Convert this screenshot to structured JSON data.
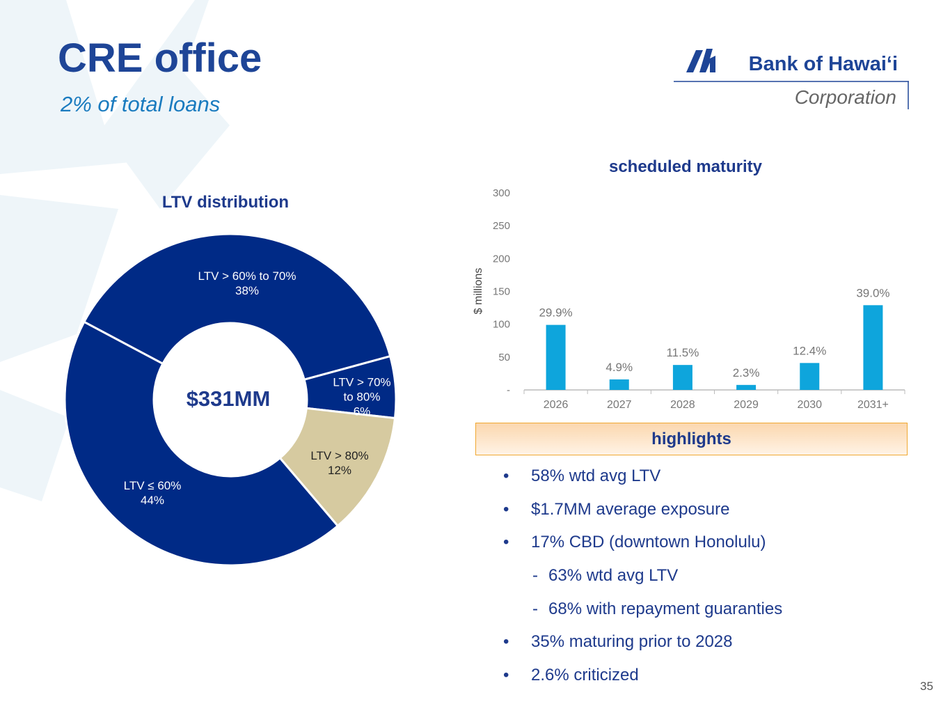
{
  "title": "CRE office",
  "subtitle": "2% of total loans",
  "logo": {
    "name": "Bank of Hawai‘i",
    "sub": "Corporation"
  },
  "chart_data": [
    {
      "type": "donut",
      "title": "LTV distribution",
      "center_label": "$331MM",
      "categories": [
        "LTV > 60% to 70%",
        "LTV > 70% to 80%",
        "LTV > 80%",
        "LTV ≤ 60%"
      ],
      "values": [
        38,
        6,
        12,
        44
      ],
      "value_labels": [
        "38%",
        "6%",
        "12%",
        "44%"
      ],
      "colors": [
        "#002a86",
        "#002a86",
        "#d6caa0",
        "#002a86"
      ]
    },
    {
      "type": "bar",
      "title": "scheduled maturity",
      "y_label": "$ millions",
      "categories": [
        "2026",
        "2027",
        "2028",
        "2029",
        "2030",
        "2031+"
      ],
      "values": [
        99,
        16,
        38,
        7.6,
        41,
        129
      ],
      "share_labels": [
        "29.9%",
        "4.9%",
        "11.5%",
        "2.3%",
        "12.4%",
        "39.0%"
      ],
      "color": "#0ea5dc",
      "ylim": [
        0,
        300
      ],
      "yticks": [
        {
          "value": 0,
          "label": "-"
        },
        50,
        100,
        150,
        200,
        250,
        300
      ]
    }
  ],
  "highlights": {
    "title": "highlights",
    "items": [
      {
        "text": "58% wtd avg LTV"
      },
      {
        "text": "$1.7MM average exposure"
      },
      {
        "text": "17% CBD (downtown Honolulu)",
        "sub": [
          "63% wtd avg LTV",
          "68% with repayment guaranties"
        ]
      },
      {
        "text": "35% maturing prior to 2028"
      },
      {
        "text": "2.6% criticized"
      }
    ]
  },
  "page_number": "35"
}
